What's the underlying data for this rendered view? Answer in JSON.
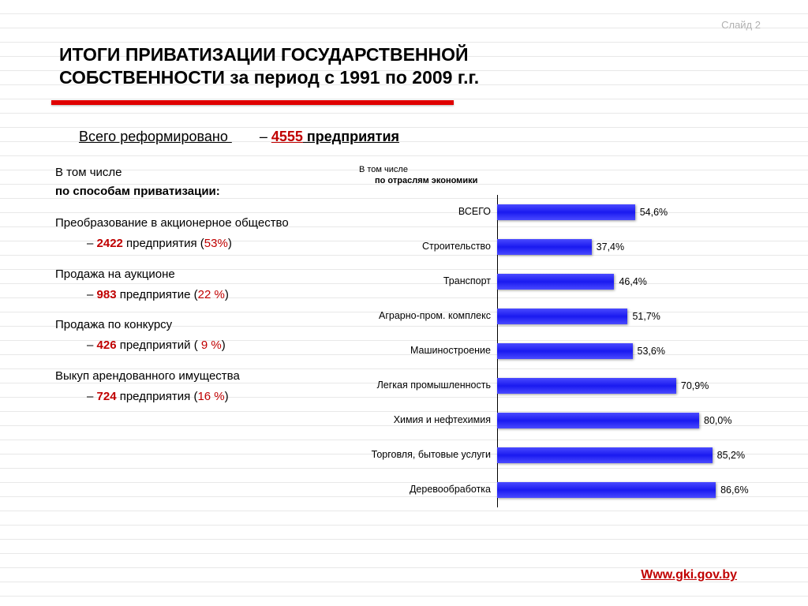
{
  "slide_number": "Слайд 2",
  "title_line1": "ИТОГИ ПРИВАТИЗАЦИИ ГОСУДАРСТВЕННОЙ",
  "title_line2": "СОБСТВЕННОСТИ  за период с 1991 по 2009 г.г.",
  "subtitle": {
    "left": "Всего реформировано ",
    "dash": "– ",
    "number": "4555",
    "unit": " предприятия"
  },
  "left": {
    "intro1": "В том числе",
    "intro2": " по способам приватизации:",
    "methods": [
      {
        "title": "Преобразование в акционерное общество",
        "num": "2422",
        "unit": " предприятия (",
        "pct": "53%",
        "close": ")"
      },
      {
        "title": "Продажа на аукционе",
        "num": "983",
        "unit": " предприятие (",
        "pct": "22 %",
        "close": ")"
      },
      {
        "title": "Продажа по конкурсу",
        "num": "426",
        "unit": " предприятий ( ",
        "pct": "9 %",
        "close": ")"
      },
      {
        "title": "Выкуп арендованного имущества",
        "num": "724",
        "unit": " предприятия (",
        "pct": "16 %",
        "close": ")"
      }
    ]
  },
  "right": {
    "intro1": "В том числе",
    "intro2": "по отраслям экономики"
  },
  "chart": {
    "type": "bar_horizontal",
    "max": 100,
    "bar_color": "#1a1af0",
    "label_fontsize": 12.5,
    "value_fontsize": 12.5,
    "rows": [
      {
        "label": "ВСЕГО",
        "value": 54.6,
        "display": "54,6%"
      },
      {
        "label": "Строительство",
        "value": 37.4,
        "display": "37,4%"
      },
      {
        "label": "Транспорт",
        "value": 46.4,
        "display": "46,4%"
      },
      {
        "label": "Аграрно-пром. комплекс",
        "value": 51.7,
        "display": "51,7%"
      },
      {
        "label": "Машиностроение",
        "value": 53.6,
        "display": "53,6%"
      },
      {
        "label": "Легкая промышленность",
        "value": 70.9,
        "display": "70,9%"
      },
      {
        "label": "Химия и нефтехимия",
        "value": 80.0,
        "display": "80,0%"
      },
      {
        "label": "Торговля, бытовые услуги",
        "value": 85.2,
        "display": "85,2%"
      },
      {
        "label": "Деревообработка",
        "value": 86.6,
        "display": "86,6%"
      }
    ]
  },
  "footer_link": "Www.gki.gov.by"
}
